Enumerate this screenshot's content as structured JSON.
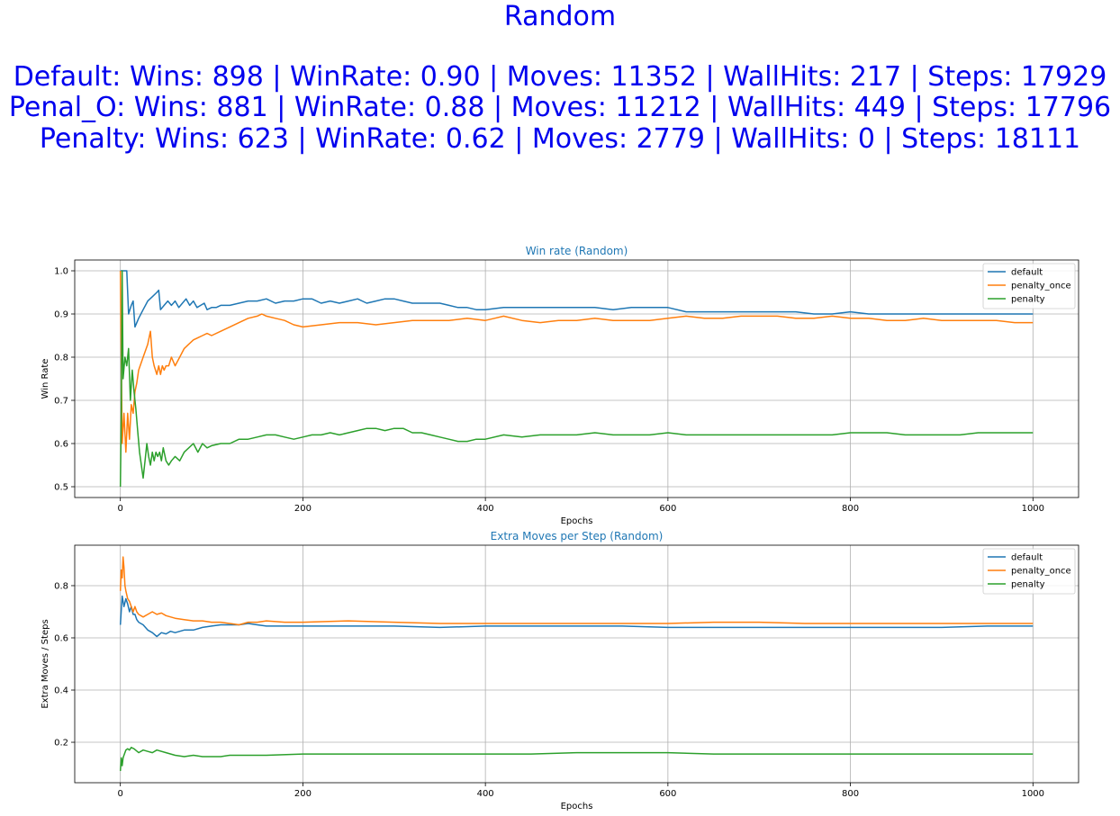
{
  "figure": {
    "title": "Random",
    "summary_lines": [
      "Default: Wins: 898 | WinRate: 0.90 | Moves: 11352 | WallHits: 217 | Steps: 17929",
      "Penal_O: Wins: 881 | WinRate: 0.88 | Moves: 11212 | WallHits: 449 | Steps: 17796",
      "Penalty: Wins: 623 | WinRate: 0.62 | Moves: 2779 | WallHits: 0 | Steps: 18111"
    ],
    "title_color": "#0000ee"
  },
  "colors": {
    "default": "#1f77b4",
    "penalty_once": "#ff7f0e",
    "penalty": "#2ca02c",
    "grid": "#b0b0b0",
    "axes_title": "#1f77b4"
  },
  "chart_data": [
    {
      "type": "line",
      "title": "Win rate (Random)",
      "xlabel": "Epochs",
      "ylabel": "Win Rate",
      "xlim": [
        -50,
        1050
      ],
      "ylim": [
        0.475,
        1.025
      ],
      "xticks": [
        0,
        200,
        400,
        600,
        800,
        1000
      ],
      "xtick_labels": [
        "0",
        "200",
        "400",
        "600",
        "800",
        "1000"
      ],
      "yticks": [
        0.5,
        0.6,
        0.7,
        0.8,
        0.9,
        1.0
      ],
      "ytick_labels": [
        "0.5",
        "0.6",
        "0.7",
        "0.8",
        "0.9",
        "1.0"
      ],
      "grid": true,
      "legend": "top-right",
      "series": [
        {
          "name": "default",
          "x": [
            0,
            3,
            5,
            7,
            9,
            12,
            14,
            16,
            20,
            25,
            30,
            35,
            40,
            42,
            44,
            48,
            52,
            56,
            58,
            60,
            64,
            68,
            72,
            76,
            80,
            84,
            88,
            92,
            95,
            100,
            105,
            110,
            115,
            120,
            130,
            140,
            150,
            160,
            170,
            180,
            190,
            200,
            210,
            220,
            230,
            240,
            250,
            260,
            270,
            280,
            290,
            300,
            310,
            320,
            330,
            340,
            350,
            360,
            370,
            380,
            390,
            400,
            420,
            440,
            460,
            480,
            500,
            520,
            540,
            560,
            580,
            600,
            620,
            640,
            660,
            680,
            700,
            720,
            740,
            760,
            780,
            800,
            820,
            840,
            860,
            880,
            900,
            920,
            940,
            960,
            980,
            1000
          ],
          "y": [
            1.0,
            1.0,
            1.0,
            1.0,
            0.9,
            0.92,
            0.93,
            0.87,
            0.89,
            0.91,
            0.93,
            0.94,
            0.95,
            0.955,
            0.91,
            0.92,
            0.93,
            0.92,
            0.925,
            0.93,
            0.915,
            0.925,
            0.935,
            0.92,
            0.93,
            0.915,
            0.92,
            0.925,
            0.91,
            0.915,
            0.915,
            0.92,
            0.92,
            0.92,
            0.925,
            0.93,
            0.93,
            0.935,
            0.925,
            0.93,
            0.93,
            0.935,
            0.935,
            0.925,
            0.93,
            0.925,
            0.93,
            0.935,
            0.925,
            0.93,
            0.935,
            0.935,
            0.93,
            0.925,
            0.925,
            0.925,
            0.925,
            0.92,
            0.915,
            0.915,
            0.91,
            0.91,
            0.915,
            0.915,
            0.915,
            0.915,
            0.915,
            0.915,
            0.91,
            0.915,
            0.915,
            0.915,
            0.905,
            0.905,
            0.905,
            0.905,
            0.905,
            0.905,
            0.905,
            0.9,
            0.9,
            0.905,
            0.9,
            0.9,
            0.9,
            0.9,
            0.9,
            0.9,
            0.9,
            0.9,
            0.9,
            0.9
          ]
        },
        {
          "name": "penalty_once",
          "x": [
            0,
            2,
            4,
            6,
            8,
            10,
            12,
            14,
            16,
            18,
            20,
            25,
            30,
            33,
            35,
            37,
            40,
            42,
            44,
            46,
            48,
            50,
            53,
            56,
            60,
            65,
            70,
            75,
            80,
            85,
            90,
            95,
            100,
            110,
            120,
            130,
            140,
            150,
            155,
            160,
            170,
            180,
            190,
            200,
            220,
            240,
            260,
            280,
            300,
            320,
            340,
            360,
            380,
            400,
            410,
            420,
            440,
            460,
            480,
            500,
            520,
            540,
            560,
            580,
            600,
            620,
            640,
            660,
            680,
            700,
            720,
            740,
            760,
            780,
            800,
            820,
            840,
            860,
            880,
            900,
            920,
            940,
            960,
            980,
            1000
          ],
          "y": [
            1.0,
            0.6,
            0.67,
            0.58,
            0.67,
            0.61,
            0.69,
            0.67,
            0.72,
            0.74,
            0.77,
            0.8,
            0.83,
            0.86,
            0.8,
            0.78,
            0.76,
            0.78,
            0.76,
            0.78,
            0.77,
            0.78,
            0.78,
            0.8,
            0.78,
            0.8,
            0.82,
            0.83,
            0.84,
            0.845,
            0.85,
            0.855,
            0.85,
            0.86,
            0.87,
            0.88,
            0.89,
            0.895,
            0.9,
            0.895,
            0.89,
            0.885,
            0.875,
            0.87,
            0.875,
            0.88,
            0.88,
            0.875,
            0.88,
            0.885,
            0.885,
            0.885,
            0.89,
            0.885,
            0.89,
            0.895,
            0.885,
            0.88,
            0.885,
            0.885,
            0.89,
            0.885,
            0.885,
            0.885,
            0.89,
            0.895,
            0.89,
            0.89,
            0.895,
            0.895,
            0.895,
            0.89,
            0.89,
            0.895,
            0.89,
            0.89,
            0.885,
            0.885,
            0.89,
            0.885,
            0.885,
            0.885,
            0.885,
            0.88,
            0.88
          ]
        },
        {
          "name": "penalty",
          "x": [
            0,
            1,
            2,
            3,
            5,
            7,
            9,
            11,
            13,
            15,
            17,
            19,
            21,
            23,
            25,
            27,
            29,
            31,
            33,
            35,
            37,
            39,
            41,
            43,
            45,
            47,
            50,
            53,
            56,
            60,
            65,
            70,
            75,
            80,
            85,
            90,
            95,
            100,
            110,
            120,
            130,
            140,
            150,
            160,
            170,
            180,
            190,
            200,
            210,
            220,
            230,
            240,
            250,
            260,
            270,
            280,
            290,
            300,
            310,
            320,
            330,
            340,
            350,
            360,
            370,
            380,
            390,
            400,
            420,
            440,
            460,
            480,
            500,
            520,
            540,
            560,
            580,
            600,
            620,
            640,
            660,
            680,
            700,
            720,
            740,
            760,
            780,
            800,
            820,
            840,
            860,
            880,
            900,
            920,
            940,
            960,
            980,
            1000
          ],
          "y": [
            0.5,
            0.67,
            1.0,
            0.75,
            0.8,
            0.78,
            0.82,
            0.7,
            0.77,
            0.72,
            0.68,
            0.63,
            0.58,
            0.55,
            0.52,
            0.56,
            0.6,
            0.57,
            0.55,
            0.58,
            0.56,
            0.58,
            0.57,
            0.58,
            0.56,
            0.59,
            0.56,
            0.55,
            0.56,
            0.57,
            0.56,
            0.58,
            0.59,
            0.6,
            0.58,
            0.6,
            0.59,
            0.595,
            0.6,
            0.6,
            0.61,
            0.61,
            0.615,
            0.62,
            0.62,
            0.615,
            0.61,
            0.615,
            0.62,
            0.62,
            0.625,
            0.62,
            0.625,
            0.63,
            0.635,
            0.635,
            0.63,
            0.635,
            0.635,
            0.625,
            0.625,
            0.62,
            0.615,
            0.61,
            0.605,
            0.605,
            0.61,
            0.61,
            0.62,
            0.615,
            0.62,
            0.62,
            0.62,
            0.625,
            0.62,
            0.62,
            0.62,
            0.625,
            0.62,
            0.62,
            0.62,
            0.62,
            0.62,
            0.62,
            0.62,
            0.62,
            0.62,
            0.625,
            0.625,
            0.625,
            0.62,
            0.62,
            0.62,
            0.62,
            0.625,
            0.625,
            0.625,
            0.625
          ]
        }
      ]
    },
    {
      "type": "line",
      "title": "Extra Moves per Step (Random)",
      "xlabel": "Epochs",
      "ylabel": "Extra Moves / Steps",
      "xlim": [
        -50,
        1050
      ],
      "ylim": [
        0.045,
        0.955
      ],
      "xticks": [
        0,
        200,
        400,
        600,
        800,
        1000
      ],
      "xtick_labels": [
        "0",
        "200",
        "400",
        "600",
        "800",
        "1000"
      ],
      "yticks": [
        0.2,
        0.4,
        0.6,
        0.8
      ],
      "ytick_labels": [
        "0.2",
        "0.4",
        "0.6",
        "0.8"
      ],
      "grid": true,
      "legend": "top-right",
      "series": [
        {
          "name": "default",
          "x": [
            0,
            2,
            4,
            6,
            8,
            10,
            12,
            14,
            16,
            18,
            20,
            25,
            30,
            35,
            40,
            45,
            50,
            55,
            60,
            70,
            80,
            90,
            100,
            110,
            120,
            130,
            140,
            150,
            160,
            180,
            200,
            250,
            300,
            350,
            400,
            450,
            500,
            550,
            600,
            650,
            700,
            750,
            800,
            850,
            900,
            950,
            1000
          ],
          "y": [
            0.65,
            0.76,
            0.72,
            0.75,
            0.73,
            0.7,
            0.72,
            0.69,
            0.69,
            0.67,
            0.66,
            0.65,
            0.63,
            0.62,
            0.605,
            0.62,
            0.615,
            0.625,
            0.62,
            0.63,
            0.63,
            0.64,
            0.645,
            0.65,
            0.65,
            0.65,
            0.655,
            0.65,
            0.645,
            0.645,
            0.645,
            0.645,
            0.645,
            0.64,
            0.645,
            0.645,
            0.645,
            0.645,
            0.64,
            0.64,
            0.64,
            0.64,
            0.64,
            0.64,
            0.64,
            0.645,
            0.645
          ]
        },
        {
          "name": "penalty_once",
          "x": [
            0,
            1,
            2,
            3,
            4,
            5,
            6,
            8,
            10,
            12,
            14,
            16,
            18,
            20,
            25,
            30,
            35,
            40,
            45,
            50,
            60,
            70,
            80,
            90,
            100,
            110,
            120,
            130,
            140,
            150,
            160,
            180,
            200,
            250,
            300,
            350,
            400,
            450,
            500,
            550,
            600,
            650,
            700,
            750,
            800,
            850,
            900,
            950,
            1000
          ],
          "y": [
            0.78,
            0.86,
            0.83,
            0.91,
            0.87,
            0.8,
            0.78,
            0.75,
            0.74,
            0.72,
            0.7,
            0.72,
            0.7,
            0.69,
            0.68,
            0.69,
            0.7,
            0.69,
            0.695,
            0.685,
            0.675,
            0.67,
            0.665,
            0.665,
            0.66,
            0.66,
            0.655,
            0.65,
            0.66,
            0.66,
            0.665,
            0.66,
            0.66,
            0.665,
            0.66,
            0.655,
            0.655,
            0.655,
            0.655,
            0.655,
            0.655,
            0.66,
            0.66,
            0.655,
            0.655,
            0.655,
            0.655,
            0.655,
            0.655
          ]
        },
        {
          "name": "penalty",
          "x": [
            0,
            1,
            2,
            3,
            4,
            6,
            8,
            10,
            12,
            15,
            20,
            25,
            30,
            35,
            40,
            50,
            60,
            70,
            80,
            90,
            100,
            110,
            120,
            140,
            160,
            200,
            250,
            300,
            350,
            400,
            450,
            500,
            550,
            600,
            650,
            700,
            750,
            800,
            850,
            900,
            950,
            1000
          ],
          "y": [
            0.09,
            0.14,
            0.11,
            0.14,
            0.15,
            0.17,
            0.175,
            0.17,
            0.18,
            0.175,
            0.16,
            0.17,
            0.165,
            0.16,
            0.17,
            0.16,
            0.15,
            0.145,
            0.15,
            0.145,
            0.145,
            0.145,
            0.15,
            0.15,
            0.15,
            0.155,
            0.155,
            0.155,
            0.155,
            0.155,
            0.155,
            0.16,
            0.16,
            0.16,
            0.155,
            0.155,
            0.155,
            0.155,
            0.155,
            0.155,
            0.155,
            0.155
          ]
        }
      ]
    }
  ]
}
